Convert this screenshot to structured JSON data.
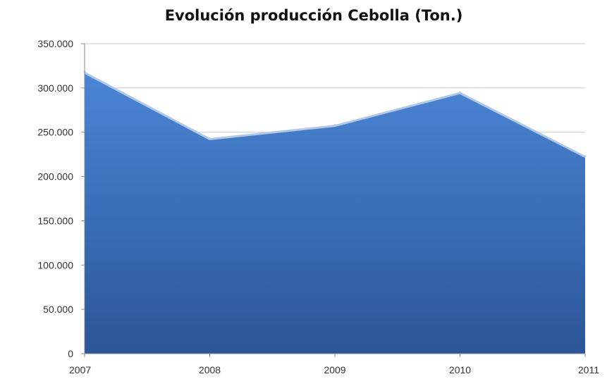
{
  "chart_data": {
    "type": "area",
    "title": "Evolución producción Cebolla (Ton.)",
    "xlabel": "",
    "ylabel": "",
    "categories": [
      "2007",
      "2008",
      "2009",
      "2010",
      "2011"
    ],
    "values": [
      318000,
      243000,
      258000,
      295000,
      223000
    ],
    "ylim": [
      0,
      350000
    ],
    "yticks": [
      0,
      50000,
      100000,
      150000,
      200000,
      250000,
      300000,
      350000
    ],
    "ytick_labels": [
      "0",
      "50.000",
      "100.000",
      "150.000",
      "200.000",
      "250.000",
      "300.000",
      "350.000"
    ],
    "grid": true,
    "legend": "none",
    "colors": {
      "fill_top": "#4a86d6",
      "fill_bottom": "#2b5597",
      "edge": "#a9c8f2",
      "grid": "#c9c9c9"
    }
  }
}
